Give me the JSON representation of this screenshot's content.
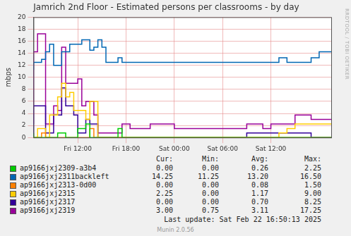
{
  "chart_data": {
    "type": "line",
    "title": "Jamrich 2nd Floor - Estimated persons per classrooms - by day",
    "y_label": "mbps",
    "line_style": "stepped",
    "grid": true,
    "xlim": [
      6.5,
      43.5
    ],
    "xticks": [
      {
        "value": 12,
        "label": "Fri 12:00"
      },
      {
        "value": 18,
        "label": "Fri 18:00"
      },
      {
        "value": 24,
        "label": "Sat 00:00"
      },
      {
        "value": 30,
        "label": "Sat 06:00"
      },
      {
        "value": 36,
        "label": "Sat 12:00"
      }
    ],
    "ylim": [
      0,
      20
    ],
    "yticks": [
      0,
      2,
      4,
      6,
      8,
      10,
      12,
      14,
      16,
      18,
      20
    ],
    "x": [
      6.5,
      7,
      7.5,
      8,
      8.5,
      9,
      9.5,
      10,
      10.5,
      11,
      11.5,
      12,
      12.5,
      13,
      13.5,
      14,
      14.5,
      15,
      15.5,
      16,
      16.5,
      17,
      17.5,
      18,
      18.5,
      19,
      20,
      21,
      22,
      23,
      24,
      25,
      26,
      27,
      28,
      29,
      30,
      31,
      32,
      33,
      34,
      35,
      36,
      37,
      38,
      39,
      40,
      41,
      42,
      43,
      43.5
    ],
    "stats_columns": [
      "Cur:",
      "Min:",
      "Avg:",
      "Max:"
    ],
    "series": [
      {
        "name": "ap9166jxj2309-a3b4",
        "color": "#00cc00",
        "stats": [
          "0.00",
          "0.00",
          "0.26",
          "2.25"
        ],
        "values": [
          0.75,
          0,
          0,
          0,
          0,
          0,
          0,
          0.75,
          0.75,
          0,
          0,
          0,
          1.5,
          1.5,
          2.25,
          0,
          0,
          0,
          0,
          0,
          0,
          0,
          1.5,
          0,
          0,
          0,
          0,
          0,
          0,
          0,
          0,
          0,
          0,
          0,
          0,
          0,
          0,
          0,
          0,
          0,
          0,
          0,
          0,
          0,
          0,
          0,
          0,
          0,
          0,
          0,
          0
        ]
      },
      {
        "name": "ap9166jxj2311backleft",
        "color": "#0066b3",
        "stats": [
          "14.25",
          "11.25",
          "13.20",
          "16.50"
        ],
        "values": [
          11.25,
          12.5,
          12.5,
          13,
          14.25,
          15.5,
          12,
          12,
          14.25,
          14.25,
          15.5,
          15.5,
          15.5,
          16.25,
          16.25,
          14.5,
          15,
          16.25,
          15,
          12.5,
          12.5,
          12.5,
          13.25,
          12.5,
          12.5,
          12.5,
          12.5,
          12.5,
          12.5,
          12.5,
          12.5,
          12.5,
          12.5,
          12.5,
          12.5,
          12.5,
          12.5,
          12.5,
          12.5,
          12.5,
          12.5,
          12.5,
          12.5,
          12.5,
          13.25,
          12.5,
          12.5,
          12.5,
          13.25,
          14.25,
          14.25
        ]
      },
      {
        "name": "ap9166jxj2313-0d00",
        "color": "#ff8000",
        "stats": [
          "0.00",
          "0.00",
          "0.08",
          "1.50"
        ],
        "values": [
          0,
          0,
          0,
          0.75,
          0,
          0,
          0,
          0,
          0,
          0,
          0,
          0,
          0,
          0,
          0,
          1.5,
          0,
          0,
          0,
          0,
          0,
          0,
          0,
          0,
          0,
          0,
          0,
          0,
          0,
          0,
          0,
          0,
          0,
          0,
          0,
          0,
          0,
          0,
          0,
          0,
          0,
          0,
          0,
          0,
          0,
          0,
          0,
          0,
          0,
          0,
          0
        ]
      },
      {
        "name": "ap9166jxj2315",
        "color": "#ffcc00",
        "stats": [
          "2.25",
          "0.00",
          "1.17",
          "9.00"
        ],
        "values": [
          0,
          0,
          1.5,
          1.5,
          0,
          3.75,
          3.75,
          6.75,
          9,
          6.75,
          7.5,
          4.5,
          4.5,
          4.5,
          3,
          6,
          6,
          0,
          0,
          0,
          0,
          0,
          0,
          0,
          0,
          0,
          0,
          0,
          0,
          0,
          0,
          0,
          0,
          0,
          0,
          0,
          0,
          0,
          0,
          0,
          0,
          0,
          0,
          0,
          0.75,
          1.5,
          2.25,
          2.25,
          2.25,
          2.25,
          2.25
        ]
      },
      {
        "name": "ap9166jxj2317",
        "color": "#330099",
        "stats": [
          "0.00",
          "0.00",
          "0.70",
          "8.25"
        ],
        "values": [
          0,
          5.25,
          5.25,
          5.25,
          0.75,
          0.75,
          3.75,
          3.75,
          8.25,
          5.25,
          5.25,
          3.75,
          0.75,
          0.75,
          3,
          2.25,
          2.25,
          0,
          0,
          0,
          0,
          0,
          0,
          0,
          0,
          0,
          0,
          0,
          0,
          0,
          0,
          0,
          0,
          0,
          0,
          0,
          0,
          0,
          0,
          0,
          0.75,
          0.75,
          0.75,
          0.75,
          0.75,
          0.75,
          0.75,
          0.75,
          0,
          0,
          0
        ]
      },
      {
        "name": "ap9166jxj2319",
        "color": "#990099",
        "stats": [
          "3.00",
          "0.75",
          "3.11",
          "17.25"
        ],
        "values": [
          2.25,
          14.25,
          17.25,
          17.25,
          2.25,
          2.25,
          5.25,
          4.5,
          15,
          9,
          9,
          9,
          9.75,
          5.25,
          6,
          6,
          3.75,
          0.75,
          0.75,
          0.75,
          0.75,
          0.75,
          0.75,
          2.25,
          2.25,
          1.5,
          1.5,
          1.5,
          2.25,
          2.25,
          2.25,
          1.5,
          1.5,
          1.5,
          1.5,
          1.5,
          1.5,
          1.5,
          1.5,
          1.5,
          2.25,
          2.25,
          1.5,
          2.25,
          2.25,
          2.25,
          3.75,
          3.75,
          3,
          3,
          3
        ]
      }
    ],
    "footer": "Last update: Sat Feb 22 16:50:13 2025",
    "version": "Munin 2.0.56",
    "side_text": "RRDTOOL / TOBI OETIKER"
  }
}
